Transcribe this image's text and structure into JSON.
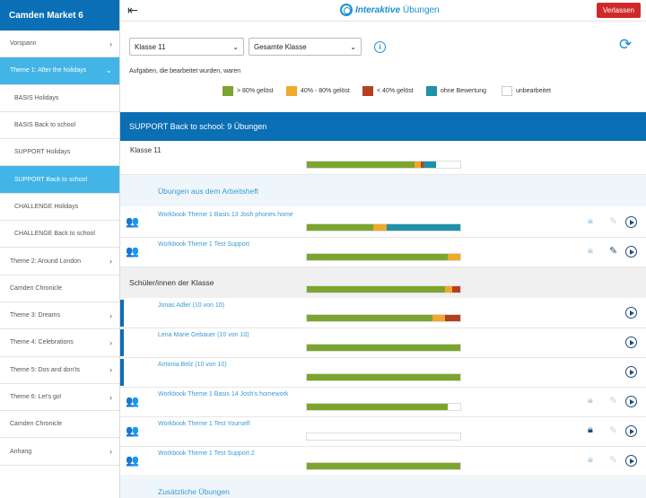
{
  "sidebar": {
    "title": "Camden Market 6",
    "items": [
      {
        "label": "Vorspann",
        "chev": "›"
      },
      {
        "label": "Theme 1: After the holidays",
        "chev": "⌄"
      },
      {
        "label": "BASIS Holidays",
        "chev": ""
      },
      {
        "label": "BASIS Back to school",
        "chev": ""
      },
      {
        "label": "SUPPORT Holidays",
        "chev": ""
      },
      {
        "label": "SUPPORT Back to school",
        "chev": ""
      },
      {
        "label": "CHALLENGE Holidays",
        "chev": ""
      },
      {
        "label": "CHALLENGE Back to school",
        "chev": ""
      },
      {
        "label": "Theme 2: Around London",
        "chev": "›"
      },
      {
        "label": "Camden Chronicle",
        "chev": ""
      },
      {
        "label": "Theme 3: Dreams",
        "chev": "›"
      },
      {
        "label": "Theme 4: Celebrations",
        "chev": "›"
      },
      {
        "label": "Theme 5: Dos and don'ts",
        "chev": "›"
      },
      {
        "label": "Theme 6: Let's go!",
        "chev": "›"
      },
      {
        "label": "Camden Chronicle",
        "chev": ""
      },
      {
        "label": "Anhang",
        "chev": "›"
      }
    ]
  },
  "topbar": {
    "logo_word1": "Interaktive",
    "logo_word2": "Übungen",
    "exit_label": "Verlassen"
  },
  "filters": {
    "class_select": "Klasse 11",
    "scope_select": "Gesamte Klasse",
    "info": "i"
  },
  "legend": {
    "title": "Aufgaben, die bearbeitet wurden, waren",
    "items": [
      {
        "label": "> 80% gelöst",
        "color": "#7ba52e"
      },
      {
        "label": "40% - 80% gelöst",
        "color": "#f0a92b"
      },
      {
        "label": "< 40% gelöst",
        "color": "#b5401f"
      },
      {
        "label": "ohne Bewertung",
        "color": "#1f91a8"
      },
      {
        "label": "unbearbeitet",
        "color": "#ffffff"
      }
    ]
  },
  "section": {
    "title": "SUPPORT Back to school: 9 Übungen",
    "class_label": "Klasse 11",
    "workbook_header": "Übungen aus dem Arbeitsheft",
    "students_header": "Schüler/innen der Klasse",
    "extra_header": "Zusätzliche Übungen",
    "exercises": [
      {
        "label": "Workbook Theme 1 Basis 13 Josh phones home",
        "progress": {
          "green": 0.43,
          "orange": 0.09,
          "red": 0,
          "teal": 0.48,
          "white": 0
        }
      },
      {
        "label": "Workbook Theme 1 Test Support",
        "progress": {
          "green": 0.92,
          "orange": 0.08,
          "red": 0,
          "teal": 0,
          "white": 0
        }
      }
    ],
    "students": [
      {
        "label": "Jonas Adler (10 von 10)",
        "progress": {
          "green": 0.82,
          "orange": 0.08,
          "red": 0.1,
          "teal": 0,
          "white": 0
        }
      },
      {
        "label": "Lena Marie Gebauer (10 von 10)",
        "progress": {
          "green": 1,
          "orange": 0,
          "red": 0,
          "teal": 0,
          "white": 0
        }
      },
      {
        "label": "Antonia Belz (10 von 10)",
        "progress": {
          "green": 1,
          "orange": 0,
          "red": 0,
          "teal": 0,
          "white": 0
        }
      }
    ],
    "more": [
      {
        "label": "Workbook Theme 1 Basis 14 Josh's homework",
        "progress": {
          "green": 0.92,
          "orange": 0,
          "red": 0,
          "teal": 0,
          "white": 0.08
        }
      },
      {
        "label": "Workbook Theme 1 Test Yourself",
        "progress": {
          "green": 0,
          "orange": 0,
          "red": 0,
          "teal": 0,
          "white": 1
        }
      },
      {
        "label": "Workbook Theme 1 Test Support 2",
        "progress": {
          "green": 1,
          "orange": 0,
          "red": 0,
          "teal": 0,
          "white": 0
        }
      }
    ],
    "class_progress": {
      "green": 0.7,
      "orange": 0.04,
      "red": 0.02,
      "teal": 0.08,
      "white": 0.16
    },
    "students_progress": {
      "green": 0.9,
      "orange": 0.05,
      "red": 0.05,
      "teal": 0,
      "white": 0
    }
  }
}
